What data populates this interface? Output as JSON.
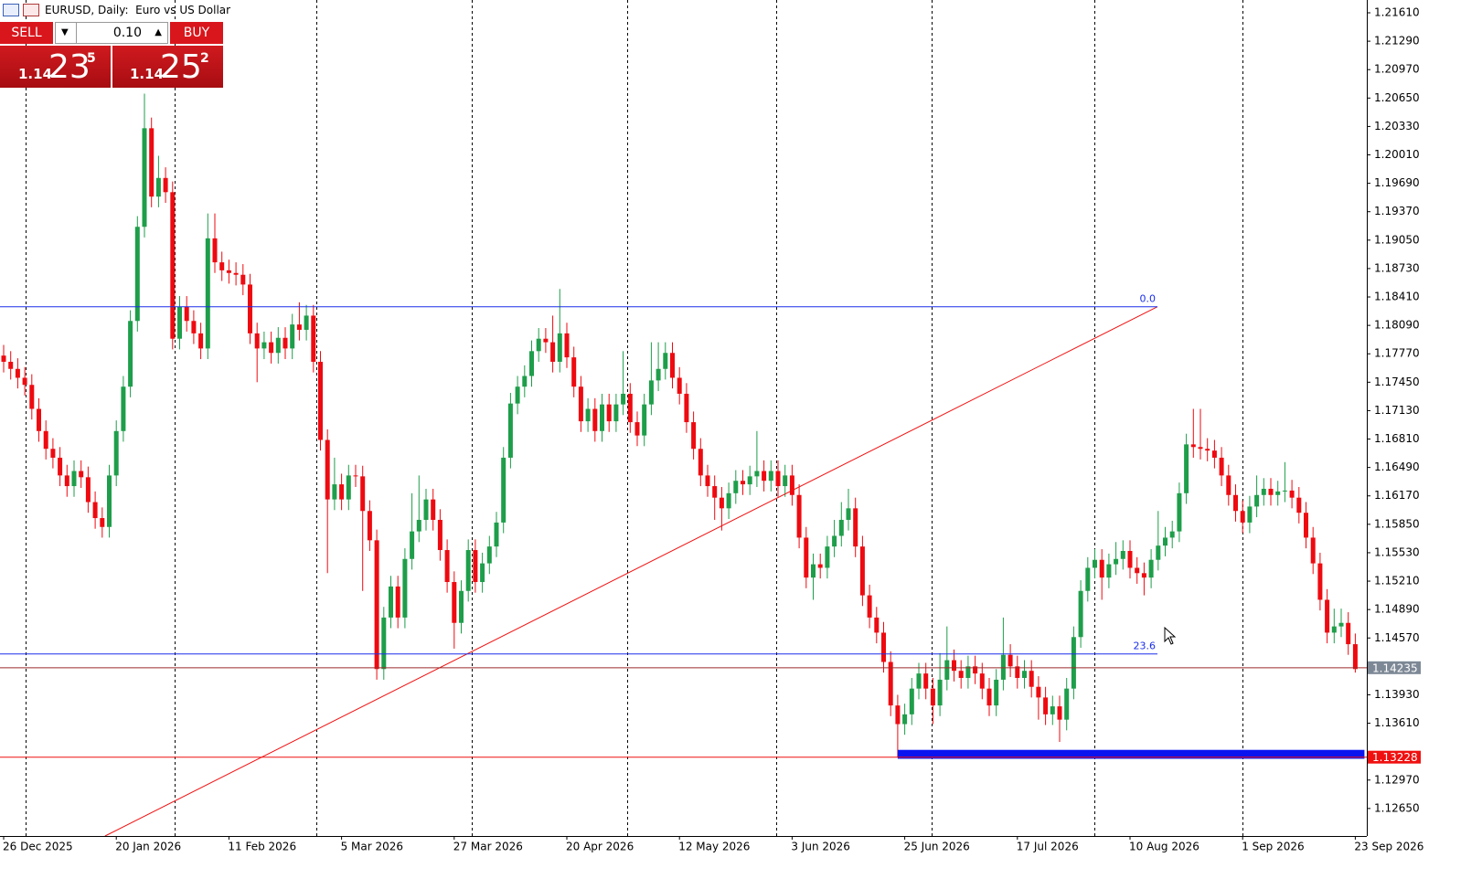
{
  "header": {
    "title": "EURUSD, Daily:  Euro vs US Dollar"
  },
  "trade_panel": {
    "sell": "SELL",
    "buy": "BUY",
    "lot": "0.10",
    "sell_price": {
      "big_figure": "1.14",
      "pips": "23",
      "point": "5"
    },
    "buy_price": {
      "big_figure": "1.14",
      "pips": "25",
      "point": "2"
    }
  },
  "chart_data": {
    "type": "candlestick",
    "x": [
      "26 Dec 2025",
      null,
      null,
      null,
      null,
      null,
      null,
      null,
      null,
      null,
      null,
      null,
      null,
      null,
      null,
      null,
      "20 Jan 2026",
      null,
      null,
      null,
      null,
      null,
      null,
      null,
      null,
      null,
      null,
      null,
      null,
      null,
      null,
      null,
      "11 Feb 2026",
      null,
      null,
      null,
      null,
      null,
      null,
      null,
      null,
      null,
      null,
      null,
      null,
      null,
      null,
      null,
      "5 Mar 2026",
      null,
      null,
      null,
      null,
      null,
      null,
      null,
      null,
      null,
      null,
      null,
      null,
      null,
      null,
      null,
      "27 Mar 2026",
      null,
      null,
      null,
      null,
      null,
      null,
      null,
      null,
      null,
      null,
      null,
      null,
      null,
      null,
      null,
      "20 Apr 2026",
      null,
      null,
      null,
      null,
      null,
      null,
      null,
      null,
      null,
      null,
      null,
      null,
      null,
      null,
      null,
      "12 May 2026",
      null,
      null,
      null,
      null,
      null,
      null,
      null,
      null,
      null,
      null,
      null,
      null,
      null,
      null,
      null,
      "3 Jun 2026",
      null,
      null,
      null,
      null,
      null,
      null,
      null,
      null,
      null,
      null,
      null,
      null,
      null,
      null,
      null,
      "25 Jun 2026",
      null,
      null,
      null,
      null,
      null,
      null,
      null,
      null,
      null,
      null,
      null,
      null,
      null,
      null,
      null,
      "17 Jul 2026",
      null,
      null,
      null,
      null,
      null,
      null,
      null,
      null,
      null,
      null,
      null,
      null,
      null,
      null,
      null,
      "10 Aug 2026",
      null,
      null,
      null,
      null,
      null,
      null,
      null,
      null,
      null,
      null,
      null,
      null,
      null,
      null,
      null,
      "1 Sep 2026",
      null,
      null,
      null,
      null,
      null,
      null,
      null,
      null,
      null,
      null,
      null,
      null,
      null,
      null,
      null,
      "23 Sep 2026"
    ],
    "open": [
      1.1775,
      1.1768,
      1.176,
      1.175,
      1.1742,
      1.1715,
      1.169,
      1.167,
      1.166,
      1.164,
      1.1628,
      1.1645,
      1.1638,
      1.161,
      1.1592,
      1.1582,
      1.164,
      1.169,
      1.174,
      1.1814,
      1.192,
      1.2031,
      1.1954,
      1.1975,
      1.1959,
      1.1794,
      1.183,
      1.1814,
      1.18,
      1.1783,
      1.1907,
      1.188,
      1.1871,
      1.1868,
      1.1866,
      1.1855,
      1.18,
      1.1783,
      1.179,
      1.1778,
      1.1795,
      1.1783,
      1.181,
      1.1804,
      1.182,
      1.1768,
      1.168,
      1.1613,
      1.163,
      1.1613,
      1.164,
      1.1639,
      1.16,
      1.1567,
      1.1422,
      1.148,
      1.1515,
      1.148,
      1.1546,
      1.1577,
      1.159,
      1.1613,
      1.159,
      1.1556,
      1.152,
      1.1474,
      1.151,
      1.1556,
      1.152,
      1.1541,
      1.156,
      1.1587,
      1.166,
      1.1721,
      1.174,
      1.1752,
      1.178,
      1.1794,
      1.179,
      1.1768,
      1.18,
      1.1773,
      1.174,
      1.1701,
      1.1715,
      1.169,
      1.172,
      1.1701,
      1.172,
      1.1732,
      1.17,
      1.1685,
      1.172,
      1.1747,
      1.176,
      1.1778,
      1.175,
      1.1732,
      1.17,
      1.167,
      1.164,
      1.1628,
      1.1615,
      1.1603,
      1.162,
      1.1634,
      1.163,
      1.1639,
      1.1645,
      1.1634,
      1.1645,
      1.1628,
      1.164,
      1.1618,
      1.157,
      1.1525,
      1.154,
      1.1536,
      1.156,
      1.1572,
      1.159,
      1.1603,
      1.156,
      1.1505,
      1.148,
      1.1463,
      1.143,
      1.1381,
      1.136,
      1.1371,
      1.14,
      1.1417,
      1.14,
      1.1381,
      1.141,
      1.1432,
      1.142,
      1.1412,
      1.1425,
      1.1417,
      1.14,
      1.1381,
      1.141,
      1.1438,
      1.1425,
      1.1412,
      1.142,
      1.1402,
      1.139,
      1.1371,
      1.138,
      1.1365,
      1.14,
      1.1458,
      1.151,
      1.1536,
      1.1545,
      1.1525,
      1.154,
      1.1546,
      1.1555,
      1.1536,
      1.153,
      1.1525,
      1.1545,
      1.1561,
      1.157,
      1.1577,
      1.162,
      1.1675,
      1.1672,
      1.167,
      1.1668,
      1.166,
      1.164,
      1.1618,
      1.16,
      1.1587,
      1.1605,
      1.1618,
      1.1625,
      1.1618,
      1.1622,
      1.1623,
      1.1615,
      1.1598,
      1.157,
      1.1541,
      1.15,
      1.1463,
      1.147,
      1.1474,
      1.145
    ],
    "high": [
      1.1787,
      1.178,
      1.1772,
      1.1762,
      1.1754,
      1.1727,
      1.1702,
      1.1682,
      1.1672,
      1.1652,
      1.1657,
      1.1657,
      1.165,
      1.1622,
      1.1604,
      1.1652,
      1.1702,
      1.1752,
      1.1826,
      1.1932,
      1.207,
      1.2043,
      1.2,
      1.1987,
      1.1971,
      1.1842,
      1.1842,
      1.1826,
      1.1812,
      1.1935,
      1.1935,
      1.1892,
      1.1883,
      1.188,
      1.1878,
      1.1867,
      1.1812,
      1.1802,
      1.1802,
      1.1807,
      1.1807,
      1.1822,
      1.1835,
      1.1832,
      1.1832,
      1.178,
      1.1692,
      1.166,
      1.1642,
      1.1652,
      1.1652,
      1.1651,
      1.1612,
      1.1579,
      1.1492,
      1.1527,
      1.1527,
      1.1558,
      1.162,
      1.164,
      1.1625,
      1.1625,
      1.1602,
      1.1568,
      1.1532,
      1.1522,
      1.1568,
      1.1568,
      1.1553,
      1.1572,
      1.1599,
      1.1672,
      1.1733,
      1.1752,
      1.1764,
      1.1792,
      1.1806,
      1.1806,
      1.182,
      1.185,
      1.1812,
      1.1785,
      1.1752,
      1.1727,
      1.1727,
      1.1732,
      1.1732,
      1.1732,
      1.178,
      1.1744,
      1.1712,
      1.1732,
      1.179,
      1.179,
      1.179,
      1.179,
      1.1762,
      1.1744,
      1.1712,
      1.1682,
      1.1652,
      1.164,
      1.1627,
      1.1632,
      1.1646,
      1.1646,
      1.1651,
      1.169,
      1.1657,
      1.1657,
      1.1657,
      1.1652,
      1.1652,
      1.163,
      1.1582,
      1.1552,
      1.1552,
      1.1572,
      1.159,
      1.161,
      1.1625,
      1.1615,
      1.1572,
      1.1517,
      1.1492,
      1.1475,
      1.1442,
      1.1393,
      1.1383,
      1.1412,
      1.1429,
      1.1429,
      1.1412,
      1.144,
      1.147,
      1.1444,
      1.1432,
      1.1437,
      1.1437,
      1.1429,
      1.1412,
      1.1422,
      1.148,
      1.145,
      1.1437,
      1.1432,
      1.1432,
      1.1414,
      1.1402,
      1.1392,
      1.1392,
      1.1412,
      1.147,
      1.1522,
      1.1548,
      1.1557,
      1.1557,
      1.1552,
      1.1565,
      1.1567,
      1.1567,
      1.1548,
      1.1542,
      1.1557,
      1.16,
      1.1582,
      1.1589,
      1.1632,
      1.1687,
      1.1715,
      1.1715,
      1.1682,
      1.168,
      1.1672,
      1.1652,
      1.163,
      1.1612,
      1.1617,
      1.164,
      1.1637,
      1.1637,
      1.1634,
      1.1655,
      1.1635,
      1.1627,
      1.161,
      1.1582,
      1.1553,
      1.1512,
      1.149,
      1.149,
      1.1486,
      1.1462
    ],
    "low": [
      1.1756,
      1.1748,
      1.1738,
      1.173,
      1.1703,
      1.1678,
      1.1658,
      1.1648,
      1.1628,
      1.1616,
      1.1616,
      1.1626,
      1.1598,
      1.158,
      1.157,
      1.157,
      1.1628,
      1.1678,
      1.1728,
      1.1802,
      1.1908,
      1.1942,
      1.1942,
      1.1947,
      1.1782,
      1.1782,
      1.1802,
      1.1788,
      1.1771,
      1.1771,
      1.1868,
      1.1859,
      1.1856,
      1.1854,
      1.1843,
      1.1788,
      1.1745,
      1.1771,
      1.1766,
      1.1766,
      1.1771,
      1.1771,
      1.1792,
      1.1792,
      1.1756,
      1.1668,
      1.153,
      1.1601,
      1.1601,
      1.1601,
      1.1627,
      1.151,
      1.1555,
      1.141,
      1.141,
      1.1468,
      1.1468,
      1.1468,
      1.1534,
      1.1565,
      1.1578,
      1.1578,
      1.1544,
      1.1508,
      1.1445,
      1.1462,
      1.1498,
      1.1508,
      1.1508,
      1.1529,
      1.1548,
      1.1575,
      1.1648,
      1.1709,
      1.1728,
      1.174,
      1.1768,
      1.1778,
      1.1756,
      1.1756,
      1.1761,
      1.1728,
      1.1689,
      1.1689,
      1.1678,
      1.1678,
      1.1689,
      1.1689,
      1.1708,
      1.1688,
      1.1673,
      1.1673,
      1.1708,
      1.1735,
      1.1748,
      1.1738,
      1.172,
      1.1688,
      1.1658,
      1.1628,
      1.1616,
      1.159,
      1.1578,
      1.1591,
      1.1608,
      1.1618,
      1.1618,
      1.1627,
      1.1622,
      1.1622,
      1.1616,
      1.1616,
      1.1606,
      1.1558,
      1.1513,
      1.15,
      1.1524,
      1.1524,
      1.1548,
      1.156,
      1.1578,
      1.1548,
      1.1493,
      1.1468,
      1.1451,
      1.1418,
      1.1369,
      1.1323,
      1.1348,
      1.1359,
      1.1388,
      1.1388,
      1.136,
      1.1369,
      1.1398,
      1.1408,
      1.14,
      1.14,
      1.1405,
      1.1388,
      1.1369,
      1.1369,
      1.1398,
      1.1413,
      1.14,
      1.14,
      1.139,
      1.1365,
      1.1359,
      1.1359,
      1.134,
      1.1353,
      1.1388,
      1.1446,
      1.1498,
      1.1524,
      1.15,
      1.1513,
      1.1528,
      1.1534,
      1.1524,
      1.1518,
      1.1505,
      1.1513,
      1.1533,
      1.1549,
      1.1558,
      1.1565,
      1.1608,
      1.166,
      1.1658,
      1.1656,
      1.1648,
      1.1628,
      1.1606,
      1.1588,
      1.1575,
      1.1575,
      1.1593,
      1.1606,
      1.1606,
      1.1606,
      1.161,
      1.1603,
      1.1586,
      1.1558,
      1.1529,
      1.1488,
      1.1451,
      1.1451,
      1.1458,
      1.1438,
      1.1418
    ],
    "close": [
      1.1768,
      1.176,
      1.175,
      1.1742,
      1.1715,
      1.169,
      1.167,
      1.166,
      1.164,
      1.1628,
      1.1645,
      1.1638,
      1.161,
      1.1592,
      1.1582,
      1.164,
      1.169,
      1.174,
      1.1814,
      1.192,
      1.2031,
      1.1954,
      1.1975,
      1.1959,
      1.1794,
      1.183,
      1.1814,
      1.18,
      1.1783,
      1.1907,
      1.188,
      1.1871,
      1.1868,
      1.1866,
      1.1855,
      1.18,
      1.1783,
      1.179,
      1.1778,
      1.1795,
      1.1783,
      1.181,
      1.1804,
      1.182,
      1.1768,
      1.168,
      1.1613,
      1.163,
      1.1613,
      1.164,
      1.1639,
      1.16,
      1.1567,
      1.1422,
      1.148,
      1.1515,
      1.148,
      1.1546,
      1.1577,
      1.159,
      1.1613,
      1.159,
      1.1556,
      1.152,
      1.1474,
      1.151,
      1.1556,
      1.152,
      1.1541,
      1.156,
      1.1587,
      1.166,
      1.1721,
      1.174,
      1.1752,
      1.178,
      1.1794,
      1.179,
      1.1768,
      1.18,
      1.1773,
      1.174,
      1.1701,
      1.1715,
      1.169,
      1.172,
      1.1701,
      1.172,
      1.1732,
      1.17,
      1.1685,
      1.172,
      1.1747,
      1.176,
      1.1778,
      1.175,
      1.1732,
      1.17,
      1.167,
      1.164,
      1.1628,
      1.1615,
      1.1603,
      1.162,
      1.1634,
      1.163,
      1.1639,
      1.1645,
      1.1634,
      1.1645,
      1.1628,
      1.164,
      1.1618,
      1.157,
      1.1525,
      1.154,
      1.1536,
      1.156,
      1.1572,
      1.159,
      1.1603,
      1.156,
      1.1505,
      1.148,
      1.1463,
      1.143,
      1.1381,
      1.136,
      1.1371,
      1.14,
      1.1417,
      1.14,
      1.1381,
      1.141,
      1.1432,
      1.142,
      1.1412,
      1.1425,
      1.1417,
      1.14,
      1.1381,
      1.141,
      1.1438,
      1.1425,
      1.1412,
      1.142,
      1.1402,
      1.139,
      1.1371,
      1.138,
      1.1365,
      1.14,
      1.1458,
      1.151,
      1.1536,
      1.1545,
      1.1525,
      1.154,
      1.1546,
      1.1555,
      1.1536,
      1.153,
      1.1525,
      1.1545,
      1.1561,
      1.157,
      1.1577,
      1.162,
      1.1675,
      1.1672,
      1.167,
      1.1668,
      1.166,
      1.164,
      1.1618,
      1.16,
      1.1587,
      1.1605,
      1.1618,
      1.1625,
      1.1618,
      1.1622,
      1.1623,
      1.1615,
      1.1598,
      1.157,
      1.1541,
      1.15,
      1.1463,
      1.147,
      1.1474,
      1.145,
      1.1422
    ],
    "up_color": "#1e9e4a",
    "down_color": "#ee0a10",
    "ylim": [
      1.1234,
      1.21754
    ],
    "yticks": [
      {
        "value": 1.2161,
        "label": "1.21610"
      },
      {
        "value": 1.2129,
        "label": "1.21290"
      },
      {
        "value": 1.2097,
        "label": "1.20970"
      },
      {
        "value": 1.2065,
        "label": "1.20650"
      },
      {
        "value": 1.2033,
        "label": "1.20330"
      },
      {
        "value": 1.2001,
        "label": "1.20010"
      },
      {
        "value": 1.1969,
        "label": "1.19690"
      },
      {
        "value": 1.1937,
        "label": "1.19370"
      },
      {
        "value": 1.1905,
        "label": "1.19050"
      },
      {
        "value": 1.1873,
        "label": "1.18730"
      },
      {
        "value": 1.1841,
        "label": "1.18410"
      },
      {
        "value": 1.1809,
        "label": "1.18090"
      },
      {
        "value": 1.1777,
        "label": "1.17770"
      },
      {
        "value": 1.1745,
        "label": "1.17450"
      },
      {
        "value": 1.1713,
        "label": "1.17130"
      },
      {
        "value": 1.1681,
        "label": "1.16810"
      },
      {
        "value": 1.1649,
        "label": "1.16490"
      },
      {
        "value": 1.1617,
        "label": "1.16170"
      },
      {
        "value": 1.1585,
        "label": "1.15850"
      },
      {
        "value": 1.1553,
        "label": "1.15530"
      },
      {
        "value": 1.1521,
        "label": "1.15210"
      },
      {
        "value": 1.1489,
        "label": "1.14890"
      },
      {
        "value": 1.1457,
        "label": "1.14570"
      },
      {
        "value": 1.1393,
        "label": "1.13930"
      },
      {
        "value": 1.1361,
        "label": "1.13610"
      },
      {
        "value": 1.1297,
        "label": "1.12970"
      },
      {
        "value": 1.1265,
        "label": "1.12650"
      }
    ],
    "fibo_levels": [
      {
        "label": "0.0",
        "value": 1.183
      },
      {
        "label": "23.6",
        "value": 1.1439
      }
    ],
    "fibo_color": "#1a2ee8",
    "trend_line": {
      "x": [
        14.4,
        163.9
      ],
      "y": [
        1.1234,
        1.183
      ],
      "color": "#f01010"
    },
    "price_lines": [
      {
        "value": 1.14235,
        "color": "#9b2a2a",
        "label_bg": "#7d8896"
      },
      {
        "value": 1.13228,
        "color": "#f01010",
        "label_bg": "#f01010"
      }
    ],
    "zone": {
      "x": [
        127,
        193.3
      ],
      "y": [
        1.1321,
        1.1331
      ],
      "color": "#0a14f0"
    }
  }
}
